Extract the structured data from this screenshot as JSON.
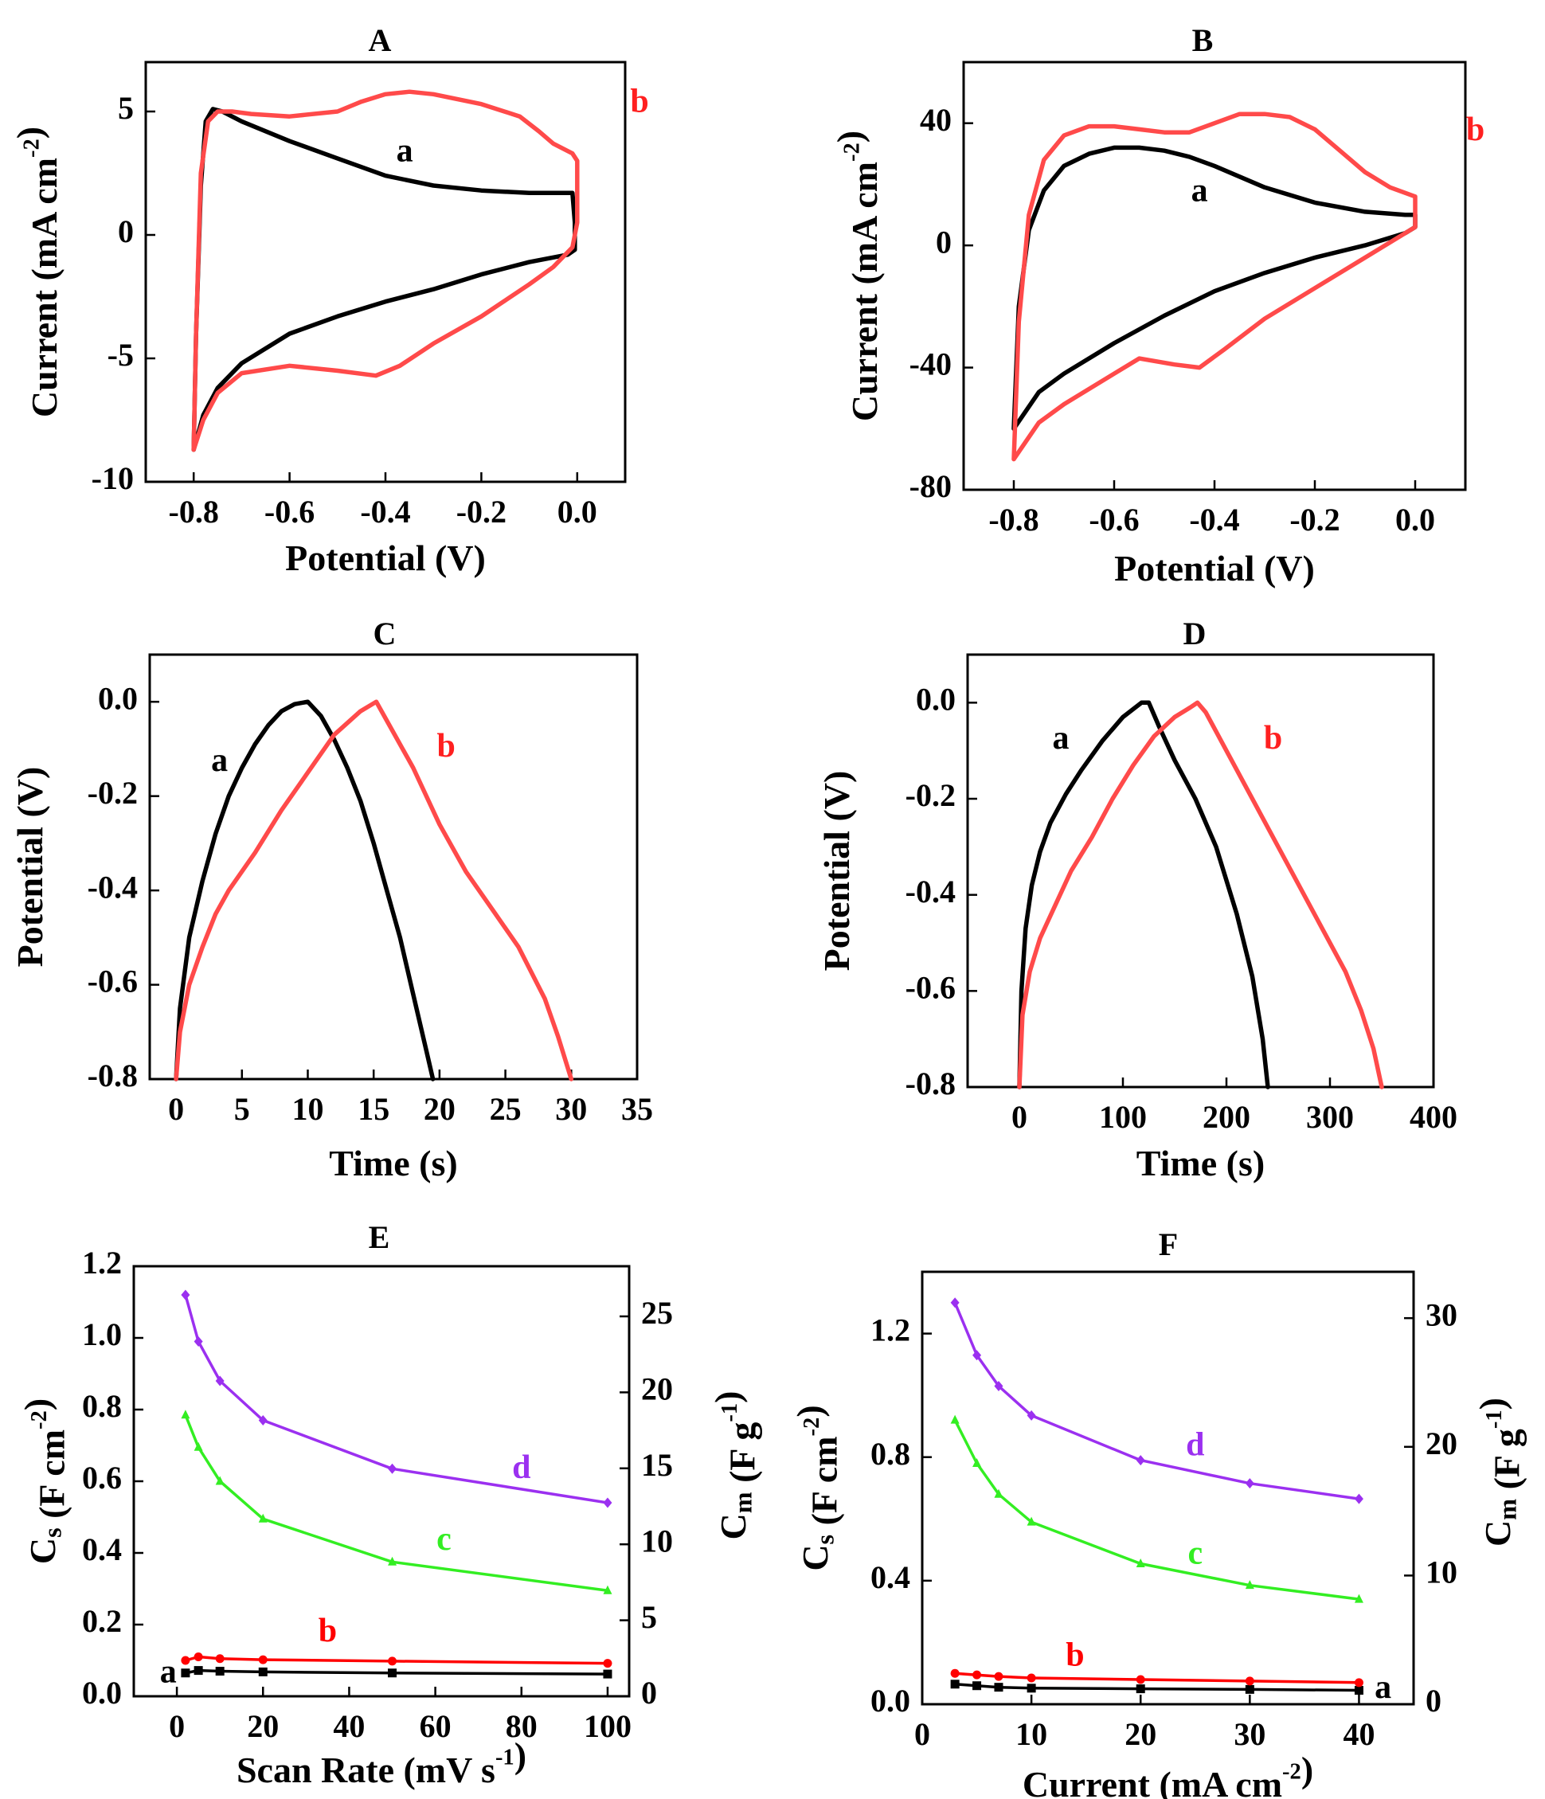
{
  "figure": {
    "colors": {
      "a": "#000000",
      "b": "#ff4a4a",
      "c": "#33ee22",
      "d": "#9b30f0",
      "b_marker": "#ff0000"
    }
  },
  "chart_data": [
    {
      "id": "A",
      "panel_label": "A",
      "type": "line",
      "xlabel": "Potential (V)",
      "ylabel": "Current (mA cm-2)",
      "xlim": [
        -0.9,
        0.1
      ],
      "ylim": [
        -10,
        7
      ],
      "xticks": [
        -0.8,
        -0.6,
        -0.4,
        -0.2,
        0.0
      ],
      "xtick_labels": [
        "-0.8",
        "-0.6",
        "-0.4",
        "-0.2",
        "0.0"
      ],
      "yticks": [
        -10,
        -5,
        0,
        5
      ],
      "ytick_labels": [
        "-10",
        "-5",
        "0",
        "5"
      ],
      "series": [
        {
          "name": "a",
          "color": "#000000",
          "label_at": [
            -0.36,
            3.3
          ],
          "x": [
            -0.8,
            -0.795,
            -0.785,
            -0.775,
            -0.76,
            -0.74,
            -0.7,
            -0.6,
            -0.5,
            -0.4,
            -0.3,
            -0.2,
            -0.1,
            -0.01,
            -0.005,
            -0.005,
            -0.02,
            -0.1,
            -0.2,
            -0.3,
            -0.4,
            -0.5,
            -0.6,
            -0.7,
            -0.75,
            -0.78,
            -0.8
          ],
          "y": [
            -8.7,
            -4,
            2,
            4.6,
            5.1,
            5.0,
            4.6,
            3.8,
            3.1,
            2.4,
            2.0,
            1.8,
            1.7,
            1.7,
            0.5,
            -0.6,
            -0.8,
            -1.1,
            -1.6,
            -2.2,
            -2.7,
            -3.3,
            -4.0,
            -5.2,
            -6.2,
            -7.3,
            -8.7
          ]
        },
        {
          "name": "b",
          "color": "#ff4a4a",
          "label_at": [
            0.13,
            5.3
          ],
          "x": [
            -0.8,
            -0.795,
            -0.785,
            -0.77,
            -0.75,
            -0.72,
            -0.68,
            -0.6,
            -0.5,
            -0.45,
            -0.4,
            -0.35,
            -0.3,
            -0.2,
            -0.12,
            -0.08,
            -0.05,
            -0.01,
            0.0,
            0.0,
            -0.01,
            -0.05,
            -0.1,
            -0.2,
            -0.3,
            -0.37,
            -0.42,
            -0.5,
            -0.6,
            -0.7,
            -0.75,
            -0.78,
            -0.8
          ],
          "y": [
            -8.7,
            -4,
            2.5,
            4.6,
            5.0,
            5.0,
            4.9,
            4.8,
            5.0,
            5.4,
            5.7,
            5.8,
            5.7,
            5.3,
            4.8,
            4.2,
            3.7,
            3.3,
            3.0,
            0.5,
            -0.5,
            -1.3,
            -2.0,
            -3.3,
            -4.4,
            -5.3,
            -5.7,
            -5.5,
            -5.3,
            -5.6,
            -6.4,
            -7.5,
            -8.7
          ]
        }
      ]
    },
    {
      "id": "B",
      "panel_label": "B",
      "type": "line",
      "xlabel": "Potential (V)",
      "ylabel": "Current (mA cm-2)",
      "xlim": [
        -0.9,
        0.1
      ],
      "ylim": [
        -80,
        60
      ],
      "xticks": [
        -0.8,
        -0.6,
        -0.4,
        -0.2,
        0.0
      ],
      "xtick_labels": [
        "-0.8",
        "-0.6",
        "-0.4",
        "-0.2",
        "0.0"
      ],
      "yticks": [
        -80,
        -40,
        0,
        40
      ],
      "ytick_labels": [
        "-80",
        "-40",
        "0",
        "40"
      ],
      "series": [
        {
          "name": "a",
          "color": "#000000",
          "label_at": [
            -0.43,
            17
          ],
          "x": [
            -0.8,
            -0.79,
            -0.77,
            -0.74,
            -0.7,
            -0.65,
            -0.6,
            -0.55,
            -0.5,
            -0.45,
            -0.4,
            -0.3,
            -0.2,
            -0.1,
            -0.02,
            0.0,
            0.0,
            -0.02,
            -0.1,
            -0.2,
            -0.3,
            -0.4,
            -0.5,
            -0.6,
            -0.7,
            -0.75,
            -0.8
          ],
          "y": [
            -60,
            -20,
            5,
            18,
            26,
            30,
            32,
            32,
            31,
            29,
            26,
            19,
            14,
            11,
            10,
            10,
            6,
            4,
            0,
            -4,
            -9,
            -15,
            -23,
            -32,
            -42,
            -48,
            -60
          ]
        },
        {
          "name": "b",
          "color": "#ff4a4a",
          "label_at": [
            0.12,
            37
          ],
          "x": [
            -0.8,
            -0.79,
            -0.77,
            -0.74,
            -0.7,
            -0.65,
            -0.6,
            -0.55,
            -0.5,
            -0.45,
            -0.4,
            -0.35,
            -0.3,
            -0.25,
            -0.2,
            -0.15,
            -0.1,
            -0.05,
            0.0,
            0.0,
            -0.02,
            -0.1,
            -0.2,
            -0.3,
            -0.38,
            -0.43,
            -0.48,
            -0.55,
            -0.6,
            -0.7,
            -0.75,
            -0.8
          ],
          "y": [
            -70,
            -25,
            10,
            28,
            36,
            39,
            39,
            38,
            37,
            37,
            40,
            43,
            43,
            42,
            38,
            31,
            24,
            19,
            16,
            6,
            4,
            -4,
            -14,
            -24,
            -34,
            -40,
            -39,
            -37,
            -42,
            -52,
            -58,
            -70
          ]
        }
      ]
    },
    {
      "id": "C",
      "panel_label": "C",
      "type": "line",
      "xlabel": "Time (s)",
      "ylabel": "Potential (V)",
      "xlim": [
        -2,
        35
      ],
      "ylim": [
        -0.8,
        0.1
      ],
      "xticks": [
        0,
        5,
        10,
        15,
        20,
        25,
        30,
        35
      ],
      "xtick_labels": [
        "0",
        "5",
        "10",
        "15",
        "20",
        "25",
        "30",
        "35"
      ],
      "yticks": [
        -0.8,
        -0.6,
        -0.4,
        -0.2,
        0.0
      ],
      "ytick_labels": [
        "-0.8",
        "-0.6",
        "-0.4",
        "-0.2",
        "0.0"
      ],
      "series": [
        {
          "name": "a",
          "color": "#000000",
          "label_at": [
            3.3,
            -0.13
          ],
          "x": [
            0,
            0.3,
            1,
            2,
            3,
            4,
            5,
            6,
            7,
            8,
            9,
            10,
            11,
            12,
            13,
            14,
            15,
            16,
            17,
            18,
            19,
            19.5
          ],
          "y": [
            -0.8,
            -0.65,
            -0.5,
            -0.38,
            -0.28,
            -0.2,
            -0.14,
            -0.09,
            -0.05,
            -0.02,
            -0.005,
            0.0,
            -0.03,
            -0.08,
            -0.14,
            -0.21,
            -0.3,
            -0.4,
            -0.5,
            -0.62,
            -0.74,
            -0.8
          ]
        },
        {
          "name": "b",
          "color": "#ff4a4a",
          "label_at": [
            20.5,
            -0.1
          ],
          "x": [
            0,
            0.3,
            1,
            2,
            3,
            4,
            6,
            8,
            10,
            12,
            14,
            15.2,
            16,
            18,
            20,
            22,
            24,
            26,
            28,
            29,
            30
          ],
          "y": [
            -0.8,
            -0.7,
            -0.6,
            -0.52,
            -0.45,
            -0.4,
            -0.32,
            -0.23,
            -0.15,
            -0.07,
            -0.02,
            0.0,
            -0.04,
            -0.14,
            -0.26,
            -0.36,
            -0.44,
            -0.52,
            -0.63,
            -0.71,
            -0.8
          ]
        }
      ]
    },
    {
      "id": "D",
      "panel_label": "D",
      "type": "line",
      "xlabel": "Time (s)",
      "ylabel": "Potential (V)",
      "xlim": [
        -50,
        400
      ],
      "ylim": [
        -0.8,
        0.1
      ],
      "xticks": [
        0,
        100,
        200,
        300,
        400
      ],
      "xtick_labels": [
        "0",
        "100",
        "200",
        "300",
        "400"
      ],
      "yticks": [
        -0.8,
        -0.6,
        -0.4,
        -0.2,
        0.0
      ],
      "ytick_labels": [
        "-0.8",
        "-0.6",
        "-0.4",
        "-0.2",
        "0.0"
      ],
      "series": [
        {
          "name": "a",
          "color": "#000000",
          "label_at": [
            40,
            -0.08
          ],
          "x": [
            0,
            2,
            6,
            12,
            20,
            30,
            45,
            60,
            80,
            100,
            118,
            125,
            135,
            150,
            170,
            190,
            210,
            225,
            235,
            240
          ],
          "y": [
            -0.8,
            -0.6,
            -0.47,
            -0.38,
            -0.31,
            -0.25,
            -0.19,
            -0.14,
            -0.08,
            -0.03,
            0.0,
            0.0,
            -0.05,
            -0.12,
            -0.2,
            -0.3,
            -0.44,
            -0.57,
            -0.7,
            -0.8
          ]
        },
        {
          "name": "b",
          "color": "#ff4a4a",
          "label_at": [
            245,
            -0.08
          ],
          "x": [
            0,
            3,
            10,
            20,
            35,
            50,
            70,
            90,
            110,
            130,
            150,
            165,
            172,
            180,
            200,
            230,
            260,
            290,
            315,
            330,
            342,
            350
          ],
          "y": [
            -0.8,
            -0.65,
            -0.56,
            -0.49,
            -0.42,
            -0.35,
            -0.28,
            -0.2,
            -0.13,
            -0.07,
            -0.03,
            -0.01,
            0.0,
            -0.02,
            -0.1,
            -0.22,
            -0.34,
            -0.46,
            -0.56,
            -0.64,
            -0.72,
            -0.8
          ]
        }
      ]
    },
    {
      "id": "E",
      "panel_label": "E",
      "type": "line",
      "xlabel": "Scan Rate (mV s-1)",
      "ylabel": "Cs (F cm-2)",
      "y2label": "Cm (F g-1)",
      "xlim": [
        -10,
        105
      ],
      "ylim": [
        0,
        1.2
      ],
      "y2lim": [
        0,
        28.3
      ],
      "xticks": [
        0,
        20,
        40,
        60,
        80,
        100
      ],
      "xtick_labels": [
        "0",
        "20",
        "40",
        "60",
        "80",
        "100"
      ],
      "yticks": [
        0.0,
        0.2,
        0.4,
        0.6,
        0.8,
        1.0,
        1.2
      ],
      "ytick_labels": [
        "0.0",
        "0.2",
        "0.4",
        "0.6",
        "0.8",
        "1.0",
        "1.2"
      ],
      "y2ticks": [
        0,
        5,
        10,
        15,
        20,
        25
      ],
      "y2tick_labels": [
        "0",
        "5",
        "10",
        "15",
        "20",
        "25"
      ],
      "series": [
        {
          "name": "a",
          "color": "#000000",
          "marker": "square",
          "axis": "left",
          "label_at": [
            -2,
            0.06
          ],
          "x": [
            2,
            5,
            10,
            20,
            50,
            100
          ],
          "y": [
            0.065,
            0.072,
            0.07,
            0.068,
            0.065,
            0.062
          ]
        },
        {
          "name": "b",
          "color": "#ff0000",
          "marker": "circle",
          "axis": "left",
          "label_at": [
            35,
            0.175
          ],
          "x": [
            2,
            5,
            10,
            20,
            50,
            100
          ],
          "y": [
            0.1,
            0.11,
            0.105,
            0.102,
            0.098,
            0.092
          ]
        },
        {
          "name": "c",
          "color": "#33ee22",
          "marker": "triangle",
          "axis": "left",
          "label_at": [
            62,
            0.43
          ],
          "x": [
            2,
            5,
            10,
            20,
            50,
            100
          ],
          "y": [
            0.785,
            0.695,
            0.6,
            0.495,
            0.375,
            0.295
          ]
        },
        {
          "name": "d",
          "color": "#9b30f0",
          "marker": "diamond",
          "axis": "left",
          "label_at": [
            80,
            0.63
          ],
          "x": [
            2,
            5,
            10,
            20,
            50,
            100
          ],
          "y": [
            1.12,
            0.99,
            0.88,
            0.77,
            0.635,
            0.54
          ]
        }
      ]
    },
    {
      "id": "F",
      "panel_label": "F",
      "type": "line",
      "xlabel": "Current (mA cm-2)",
      "ylabel": "Cs (F cm-2)",
      "y2label": "Cm (F g-1)",
      "xlim": [
        0,
        45
      ],
      "ylim": [
        0,
        1.4
      ],
      "y2lim": [
        0,
        33.6
      ],
      "xticks": [
        0,
        10,
        20,
        30,
        40
      ],
      "xtick_labels": [
        "0",
        "10",
        "20",
        "30",
        "40"
      ],
      "yticks": [
        0.0,
        0.4,
        0.8,
        1.2
      ],
      "ytick_labels": [
        "0.0",
        "0.4",
        "0.8",
        "1.2"
      ],
      "y2ticks": [
        0,
        10,
        20,
        30
      ],
      "y2tick_labels": [
        "0",
        "10",
        "20",
        "30"
      ],
      "series": [
        {
          "name": "a",
          "color": "#000000",
          "marker": "square",
          "axis": "left",
          "label_at": [
            42.2,
            0.045
          ],
          "x": [
            3,
            5,
            7,
            10,
            20,
            30,
            40
          ],
          "y": [
            0.065,
            0.06,
            0.055,
            0.052,
            0.05,
            0.048,
            0.045
          ]
        },
        {
          "name": "b",
          "color": "#ff0000",
          "marker": "circle",
          "axis": "left",
          "label_at": [
            14,
            0.15
          ],
          "x": [
            3,
            5,
            7,
            10,
            20,
            30,
            40
          ],
          "y": [
            0.1,
            0.095,
            0.09,
            0.085,
            0.08,
            0.075,
            0.07
          ]
        },
        {
          "name": "c",
          "color": "#33ee22",
          "marker": "triangle",
          "axis": "left",
          "label_at": [
            25,
            0.48
          ],
          "x": [
            3,
            5,
            7,
            10,
            20,
            30,
            40
          ],
          "y": [
            0.92,
            0.78,
            0.68,
            0.59,
            0.455,
            0.385,
            0.34
          ]
        },
        {
          "name": "d",
          "color": "#9b30f0",
          "marker": "diamond",
          "axis": "left",
          "label_at": [
            25,
            0.83
          ],
          "x": [
            3,
            5,
            7,
            10,
            20,
            30,
            40
          ],
          "y": [
            1.3,
            1.13,
            1.03,
            0.935,
            0.79,
            0.715,
            0.665
          ]
        }
      ]
    }
  ]
}
